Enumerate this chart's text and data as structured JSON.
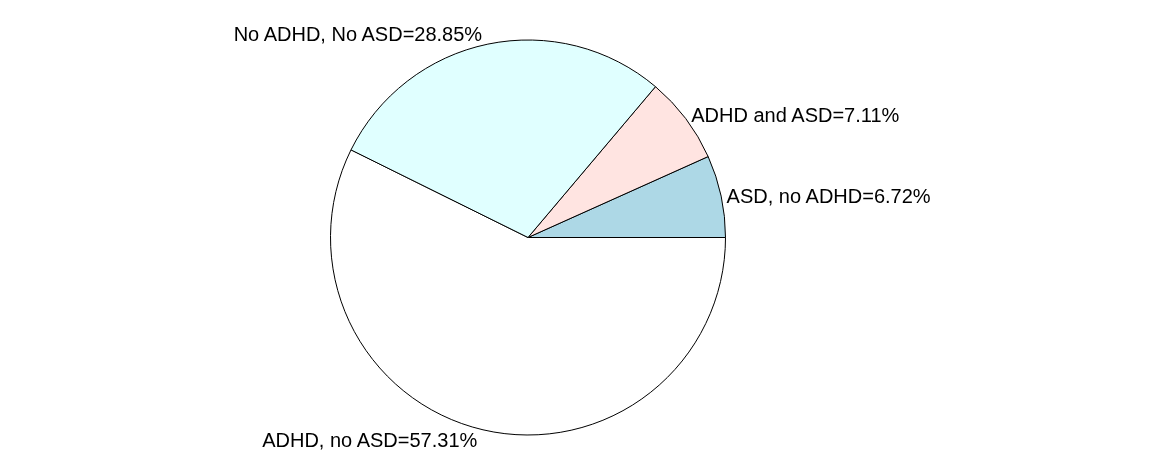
{
  "chart_data": {
    "type": "pie",
    "categories": [
      "ADHD, no ASD=57.31%",
      "ASD, no ADHD=6.72%",
      "ADHD and ASD=7.11%",
      "No ADHD, No ASD=28.85%"
    ],
    "values": [
      57.31,
      6.72,
      7.11,
      28.85
    ],
    "colors": [
      "#ffffff",
      "#add8e6",
      "#ffe4e1",
      "#e0ffff"
    ],
    "legend": false
  }
}
